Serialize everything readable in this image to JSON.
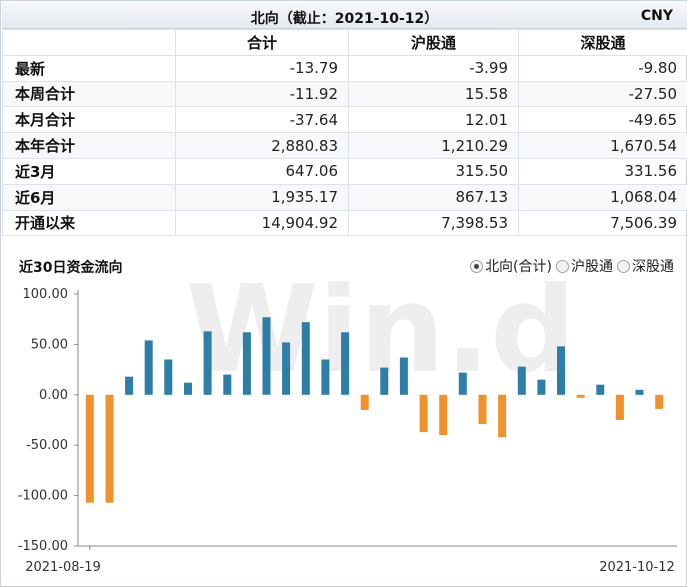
{
  "header": {
    "title": "北向（截止：2021-10-12）",
    "currency": "CNY"
  },
  "table": {
    "columns": [
      "",
      "合计",
      "沪股通",
      "深股通"
    ],
    "rows": [
      {
        "label": "最新",
        "values": [
          "-13.79",
          "-3.99",
          "-9.80"
        ]
      },
      {
        "label": "本周合计",
        "values": [
          "-11.92",
          "15.58",
          "-27.50"
        ]
      },
      {
        "label": "本月合计",
        "values": [
          "-37.64",
          "12.01",
          "-49.65"
        ]
      },
      {
        "label": "本年合计",
        "values": [
          "2,880.83",
          "1,210.29",
          "1,670.54"
        ]
      },
      {
        "label": "近3月",
        "values": [
          "647.06",
          "315.50",
          "331.56"
        ]
      },
      {
        "label": "近6月",
        "values": [
          "1,935.17",
          "867.13",
          "1,068.04"
        ]
      },
      {
        "label": "开通以来",
        "values": [
          "14,904.92",
          "7,398.53",
          "7,506.39"
        ]
      }
    ]
  },
  "chart_panel": {
    "title": "近30日资金流向",
    "legend_options": [
      {
        "label": "北向(合计)",
        "selected": true
      },
      {
        "label": "沪股通",
        "selected": false
      },
      {
        "label": "深股通",
        "selected": false
      }
    ],
    "watermark": "Win.d"
  },
  "chart_data": {
    "type": "bar",
    "title": "近30日资金流向",
    "x_start_label": "2021-08-19",
    "x_end_label": "2021-10-12",
    "ylim": [
      -150,
      100
    ],
    "yticks": [
      "100.00",
      "50.00",
      "0.00",
      "-50.00",
      "-100.00",
      "-150.00"
    ],
    "ytick_values": [
      100,
      50,
      0,
      -50,
      -100,
      -150
    ],
    "positive_color": "#2e7ea6",
    "negative_color": "#f0922b",
    "values": [
      -107,
      -107,
      18,
      54,
      35,
      12,
      63,
      20,
      62,
      77,
      52,
      72,
      35,
      62,
      -15,
      27,
      37,
      -37,
      -40,
      22,
      -29,
      -42,
      28,
      15,
      48,
      -3,
      10,
      -25,
      5,
      -14
    ]
  }
}
